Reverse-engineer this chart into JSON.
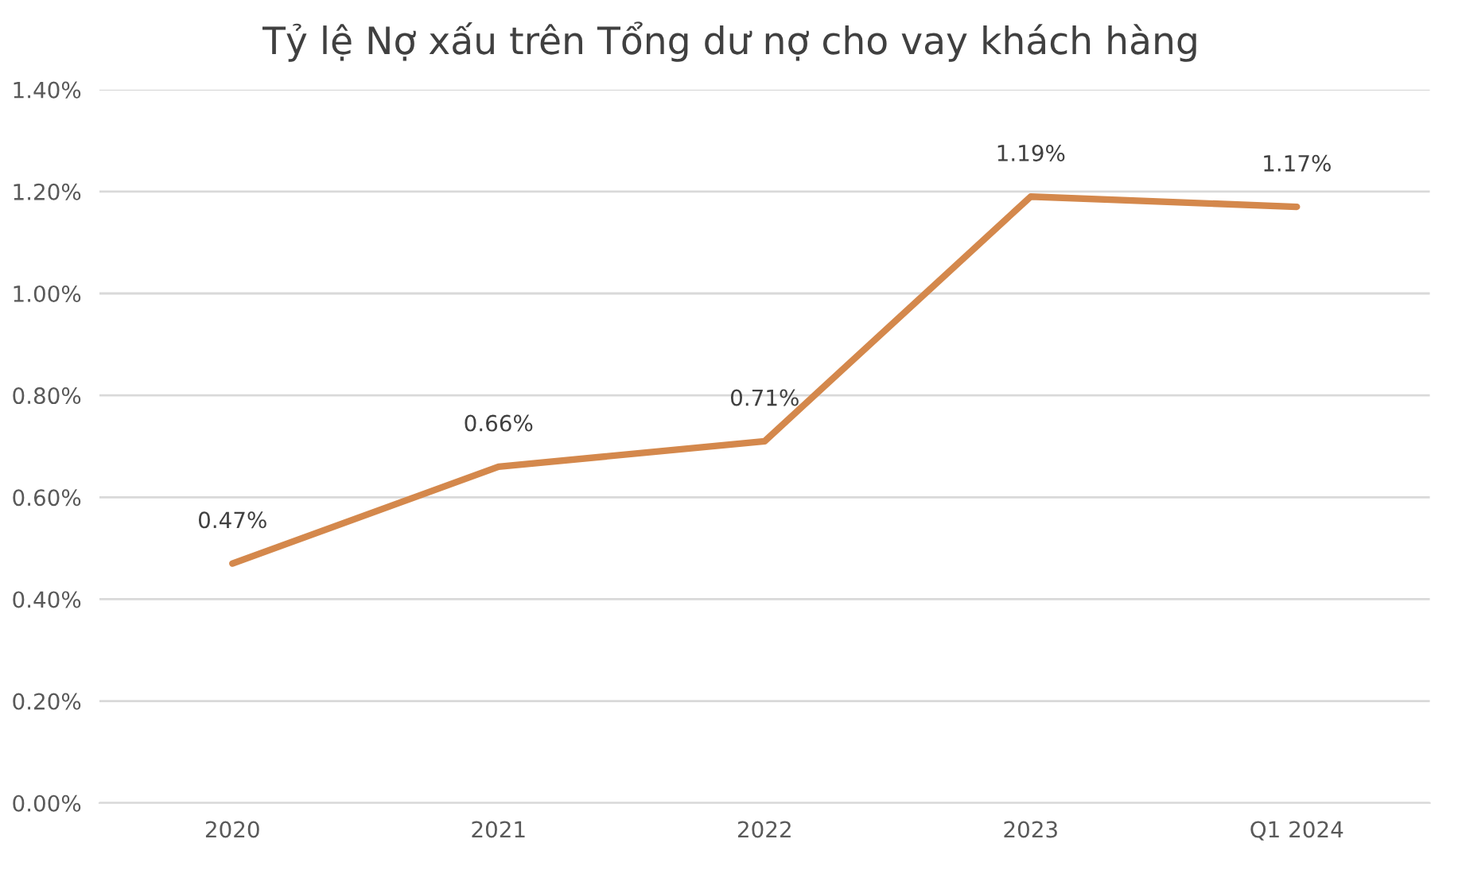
{
  "chart_data": {
    "type": "line",
    "title": "Tỷ lệ Nợ xấu trên Tổng dư nợ cho vay khách hàng",
    "categories": [
      "2020",
      "2021",
      "2022",
      "2023",
      "Q1 2024"
    ],
    "series": [
      {
        "color": "#d4884c",
        "values": [
          0.47,
          0.66,
          0.71,
          1.19,
          1.17
        ],
        "value_labels": [
          "0.47%",
          "0.66%",
          "0.71%",
          "1.19%",
          "1.17%"
        ]
      }
    ],
    "ylim": [
      0,
      1.4
    ],
    "yticks": [
      {
        "value": 0,
        "label": "0.00%"
      },
      {
        "value": 0.2,
        "label": "0.20%"
      },
      {
        "value": 0.4,
        "label": "0.40%"
      },
      {
        "value": 0.6,
        "label": "0.60%"
      },
      {
        "value": 0.8,
        "label": "0.80%"
      },
      {
        "value": 1.0,
        "label": "1.00%"
      },
      {
        "value": 1.2,
        "label": "1.20%"
      },
      {
        "value": 1.4,
        "label": "1.40%"
      }
    ],
    "grid": "y",
    "legend": false,
    "marker": "none",
    "line_style": "solid"
  }
}
